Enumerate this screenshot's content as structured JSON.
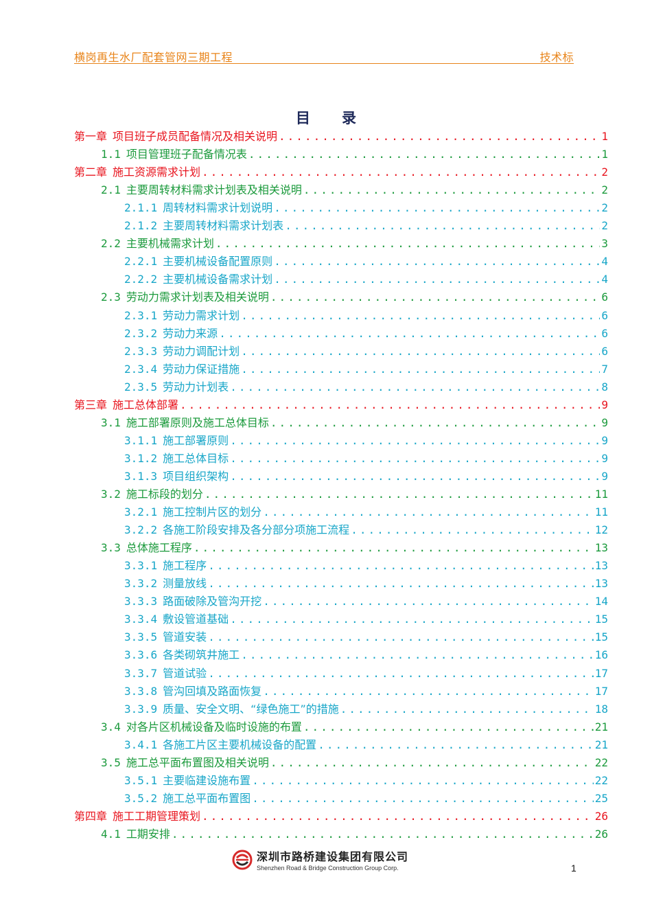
{
  "header": {
    "project": "横岗再生水厂配套管网三期工程",
    "doc_type": "技术标"
  },
  "title": "目录",
  "toc": [
    {
      "level": 1,
      "num": "第一章",
      "text": "项目班子成员配备情况及相关说明",
      "page": "1"
    },
    {
      "level": 2,
      "num": "1.1",
      "text": "项目管理班子配备情况表",
      "page": "1"
    },
    {
      "level": 1,
      "num": "第二章",
      "text": "施工资源需求计划",
      "page": "2"
    },
    {
      "level": 2,
      "num": "2.1",
      "text": "主要周转材料需求计划表及相关说明",
      "page": "2"
    },
    {
      "level": 3,
      "num": "2.1.1",
      "text": "周转材料需求计划说明",
      "page": "2"
    },
    {
      "level": 3,
      "num": "2.1.2",
      "text": "主要周转材料需求计划表",
      "page": "2"
    },
    {
      "level": 2,
      "num": "2.2",
      "text": "主要机械需求计划",
      "page": "3"
    },
    {
      "level": 3,
      "num": "2.2.1",
      "text": "主要机械设备配置原则",
      "page": "4"
    },
    {
      "level": 3,
      "num": "2.2.2",
      "text": "主要机械设备需求计划",
      "page": "4"
    },
    {
      "level": 2,
      "num": "2.3",
      "text": "劳动力需求计划表及相关说明",
      "page": "6"
    },
    {
      "level": 3,
      "num": "2.3.1",
      "text": "劳动力需求计划",
      "page": "6"
    },
    {
      "level": 3,
      "num": "2.3.2",
      "text": "劳动力来源",
      "page": "6"
    },
    {
      "level": 3,
      "num": "2.3.3",
      "text": "劳动力调配计划",
      "page": "6"
    },
    {
      "level": 3,
      "num": "2.3.4",
      "text": "劳动力保证措施",
      "page": "7"
    },
    {
      "level": 3,
      "num": "2.3.5",
      "text": "劳动力计划表",
      "page": "8"
    },
    {
      "level": 1,
      "num": "第三章",
      "text": "施工总体部署",
      "page": "9"
    },
    {
      "level": 2,
      "num": "3.1",
      "text": "施工部署原则及施工总体目标",
      "page": "9"
    },
    {
      "level": 3,
      "num": "3.1.1",
      "text": "施工部署原则",
      "page": "9"
    },
    {
      "level": 3,
      "num": "3.1.2",
      "text": "施工总体目标",
      "page": "9"
    },
    {
      "level": 3,
      "num": "3.1.3",
      "text": "项目组织架构",
      "page": "9"
    },
    {
      "level": 2,
      "num": "3.2",
      "text": "施工标段的划分",
      "page": "11"
    },
    {
      "level": 3,
      "num": "3.2.1",
      "text": "施工控制片区的划分",
      "page": "11"
    },
    {
      "level": 3,
      "num": "3.2.2",
      "text": "各施工阶段安排及各分部分项施工流程",
      "page": "12"
    },
    {
      "level": 2,
      "num": "3.3",
      "text": "总体施工程序",
      "page": "13"
    },
    {
      "level": 3,
      "num": "3.3.1",
      "text": "施工程序",
      "page": "13"
    },
    {
      "level": 3,
      "num": "3.3.2",
      "text": "测量放线",
      "page": "13"
    },
    {
      "level": 3,
      "num": "3.3.3",
      "text": "路面破除及管沟开挖",
      "page": "14"
    },
    {
      "level": 3,
      "num": "3.3.4",
      "text": "敷设管道基础",
      "page": "15"
    },
    {
      "level": 3,
      "num": "3.3.5",
      "text": "管道安装",
      "page": "15"
    },
    {
      "level": 3,
      "num": "3.3.6",
      "text": "各类砌筑井施工",
      "page": "16"
    },
    {
      "level": 3,
      "num": "3.3.7",
      "text": "管道试验",
      "page": "17"
    },
    {
      "level": 3,
      "num": "3.3.8",
      "text": "管沟回填及路面恢复",
      "page": "17"
    },
    {
      "level": 3,
      "num": "3.3.9",
      "text": "质量、安全文明、“绿色施工”的措施",
      "page": "18"
    },
    {
      "level": 2,
      "num": "3.4",
      "text": "对各片区机械设备及临时设施的布置",
      "page": "21"
    },
    {
      "level": 3,
      "num": "3.4.1",
      "text": "各施工片区主要机械设备的配置",
      "page": "21"
    },
    {
      "level": 2,
      "num": "3.5",
      "text": "施工总平面布置图及相关说明",
      "page": "22"
    },
    {
      "level": 3,
      "num": "3.5.1",
      "text": "主要临建设施布置",
      "page": "22"
    },
    {
      "level": 3,
      "num": "3.5.2",
      "text": "施工总平面布置图",
      "page": "25"
    },
    {
      "level": 1,
      "num": "第四章",
      "text": "施工工期管理策划",
      "page": "26"
    },
    {
      "level": 2,
      "num": "4.1",
      "text": "工期安排",
      "page": "26"
    }
  ],
  "footer": {
    "company_cn": "深圳市路桥建设集团有限公司",
    "company_en": "Shenzhen Road & Bridge Construction Group Corp.",
    "page_number": "1"
  },
  "colors": {
    "header": "#e8841a",
    "chapter": "#e8141e",
    "section": "#1b9a3c",
    "subsection": "#17a6c8"
  }
}
